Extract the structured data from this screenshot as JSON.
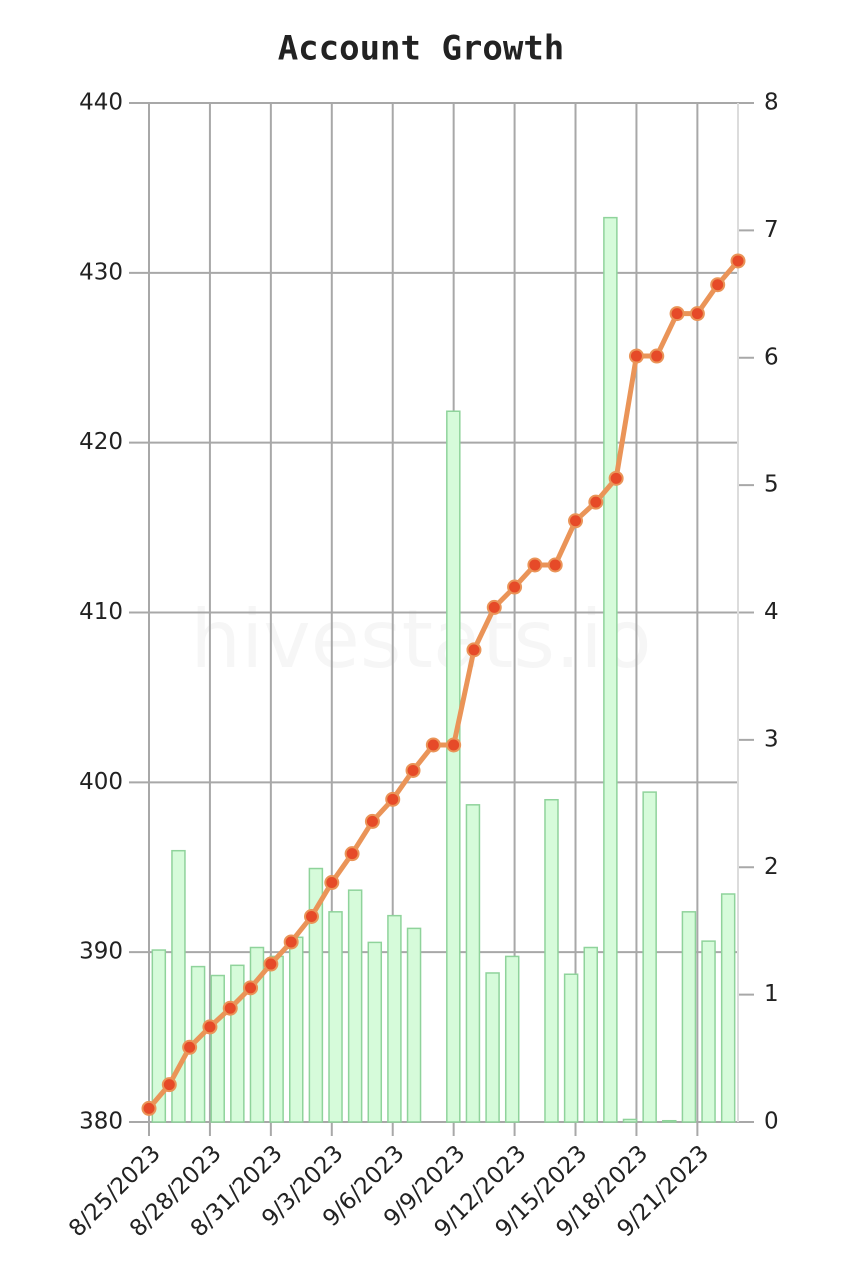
{
  "chart_data": {
    "type": "combo",
    "title": "Account Growth",
    "watermark": "hivestats.io",
    "categories": [
      "8/25/2023",
      null,
      null,
      "8/28/2023",
      null,
      null,
      "8/31/2023",
      null,
      null,
      "9/3/2023",
      null,
      null,
      "9/6/2023",
      null,
      null,
      "9/9/2023",
      null,
      null,
      "9/12/2023",
      null,
      null,
      "9/15/2023",
      null,
      null,
      "9/18/2023",
      null,
      null,
      "9/21/2023",
      null,
      null
    ],
    "series": [
      {
        "type": "bar",
        "axis": "y2",
        "color": "#d6fbda",
        "stroke": "#8fd39b",
        "values": [
          1.35,
          2.13,
          1.22,
          1.15,
          1.23,
          1.37,
          1.3,
          1.45,
          1.99,
          1.65,
          1.82,
          1.41,
          1.62,
          1.52,
          0,
          5.58,
          2.49,
          1.17,
          1.3,
          0,
          2.53,
          1.16,
          1.37,
          7.1,
          0.02,
          2.59,
          0.01,
          1.65,
          1.42,
          1.79
        ]
      },
      {
        "type": "line",
        "axis": "y",
        "color": "#ea9458",
        "marker_color": "#e64a28",
        "values": [
          380.8,
          382.2,
          384.4,
          385.6,
          386.7,
          387.9,
          389.3,
          390.6,
          392.1,
          394.1,
          395.8,
          397.7,
          399.0,
          400.7,
          402.2,
          402.2,
          407.8,
          410.3,
          411.5,
          412.8,
          412.8,
          415.4,
          416.5,
          417.9,
          425.1,
          425.1,
          427.6,
          427.6,
          429.3,
          430.7
        ]
      }
    ],
    "ylim": [
      380,
      440
    ],
    "yticks": [
      380,
      390,
      400,
      410,
      420,
      430,
      440
    ],
    "y2lim": [
      0,
      8
    ],
    "y2ticks": [
      0,
      1,
      2,
      3,
      4,
      5,
      6,
      7,
      8
    ],
    "grid": true
  }
}
